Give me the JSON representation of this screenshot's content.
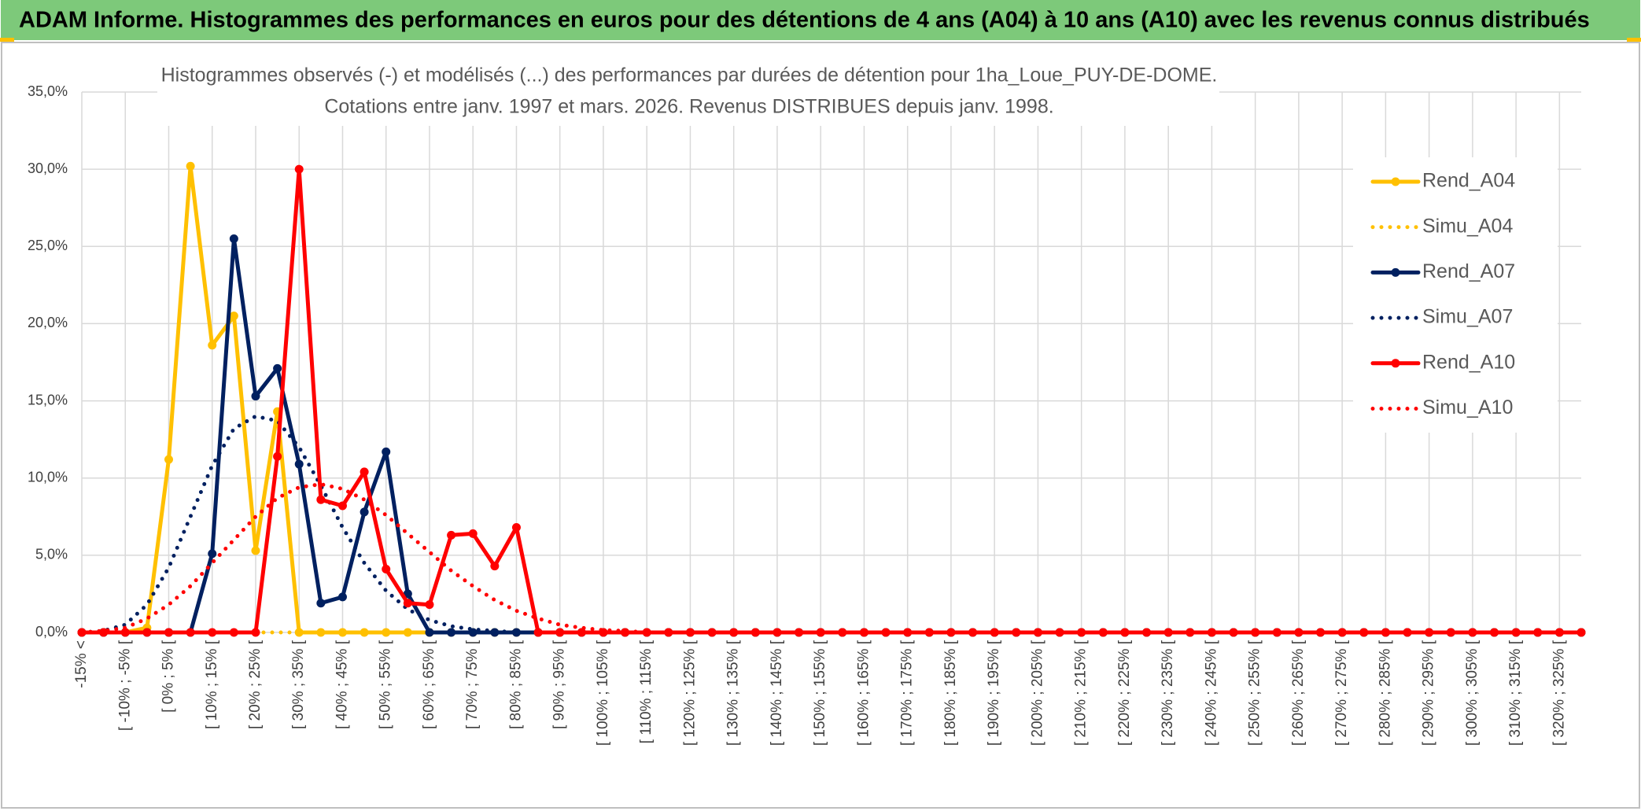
{
  "header": {
    "title": "ADAM Informe. Histogrammes des performances en euros pour des détentions de 4 ans (A04) à 10 ans (A10) avec les revenus connus distribués"
  },
  "chart_data": {
    "type": "line",
    "title": "Histogrammes observés (-) et modélisés (...) des performances par durées de détention pour 1ha_Loue_PUY-DE-DOME.",
    "subtitle": "Cotations entre janv. 1997 et mars. 2026. Revenus DISTRIBUES depuis janv. 1998.",
    "categories": [
      "-15% <",
      null,
      "[ -10% ; -5% [",
      null,
      "[ 0% ; 5% [",
      null,
      "[ 10% ; 15% [",
      null,
      "[ 20% ; 25% [",
      null,
      "[ 30% ; 35% [",
      null,
      "[ 40% ; 45% [",
      null,
      "[ 50% ; 55% [",
      null,
      "[ 60% ; 65% [",
      null,
      "[ 70% ; 75% [",
      null,
      "[ 80% ; 85% [",
      null,
      "[ 90% ; 95% [",
      null,
      "[ 100% ; 105% [",
      null,
      "[ 110% ; 115% [",
      null,
      "[ 120% ; 125% [",
      null,
      "[ 130% ; 135% [",
      null,
      "[ 140% ; 145% [",
      null,
      "[ 150% ; 155% [",
      null,
      "[ 160% ; 165% [",
      null,
      "[ 170% ; 175% [",
      null,
      "[ 180% ; 185% [",
      null,
      "[ 190% ; 195% [",
      null,
      "[ 200% ; 205% [",
      null,
      "[ 210% ; 215% [",
      null,
      "[ 220% ; 225% [",
      null,
      "[ 230% ; 235% [",
      null,
      "[ 240% ; 245% [",
      null,
      "[ 250% ; 255% [",
      null,
      "[ 260% ; 265% [",
      null,
      "[ 270% ; 275% [",
      null,
      "[ 280% ; 285% [",
      null,
      "[ 290% ; 295% [",
      null,
      "[ 300% ; 305% [",
      null,
      "[ 310% ; 315% [",
      null,
      "[ 320% ; 325% [",
      null
    ],
    "series": [
      {
        "name": "Rend_A04",
        "color": "#ffc000",
        "style": "solid",
        "markers": true,
        "values": [
          0,
          0,
          0,
          0.3,
          11.2,
          30.2,
          18.6,
          20.5,
          5.3,
          14.3,
          0,
          0,
          0,
          0,
          0,
          0,
          0,
          0,
          0,
          0,
          0,
          0,
          0,
          0,
          0,
          0,
          0,
          0,
          0,
          0,
          0,
          0,
          0,
          0,
          0,
          0,
          0,
          0,
          0,
          0,
          0,
          0,
          0,
          0,
          0,
          0,
          0,
          0,
          0,
          0,
          0,
          0,
          0,
          0,
          0,
          0,
          0,
          0,
          0,
          0,
          0,
          0,
          0,
          0,
          0,
          0,
          0,
          0,
          0,
          0
        ]
      },
      {
        "name": "Simu_A04",
        "color": "#ffc000",
        "style": "dotted",
        "markers": false,
        "values": [
          0,
          0,
          0,
          0,
          0,
          0,
          0,
          0,
          0,
          0,
          0,
          0,
          0,
          0,
          0,
          0,
          0,
          0,
          0,
          0,
          0,
          0,
          0,
          0,
          0,
          0,
          0,
          0,
          0,
          0,
          0,
          0,
          0,
          0,
          0,
          0,
          0,
          0,
          0,
          0,
          0,
          0,
          0,
          0,
          0,
          0,
          0,
          0,
          0,
          0,
          0,
          0,
          0,
          0,
          0,
          0,
          0,
          0,
          0,
          0,
          0,
          0,
          0,
          0,
          0,
          0,
          0,
          0,
          0,
          0
        ]
      },
      {
        "name": "Rend_A07",
        "color": "#002060",
        "style": "solid",
        "markers": true,
        "values": [
          0,
          0,
          0,
          0,
          0,
          0,
          5.1,
          25.5,
          15.3,
          17.1,
          10.9,
          1.9,
          2.3,
          7.8,
          11.7,
          2.5,
          0,
          0,
          0,
          0,
          0,
          0,
          0,
          0,
          0,
          0,
          0,
          0,
          0,
          0,
          0,
          0,
          0,
          0,
          0,
          0,
          0,
          0,
          0,
          0,
          0,
          0,
          0,
          0,
          0,
          0,
          0,
          0,
          0,
          0,
          0,
          0,
          0,
          0,
          0,
          0,
          0,
          0,
          0,
          0,
          0,
          0,
          0,
          0,
          0,
          0,
          0,
          0,
          0,
          0
        ]
      },
      {
        "name": "Simu_A07",
        "color": "#002060",
        "style": "dotted",
        "markers": false,
        "values": [
          0,
          0.1,
          0.5,
          1.8,
          4.2,
          7.5,
          10.8,
          13.2,
          14,
          13.7,
          12,
          9.5,
          6.8,
          4.5,
          2.7,
          1.5,
          0.8,
          0.4,
          0.2,
          0.1,
          0,
          0,
          0,
          0,
          0,
          0,
          0,
          0,
          0,
          0,
          0,
          0,
          0,
          0,
          0,
          0,
          0,
          0,
          0,
          0,
          0,
          0,
          0,
          0,
          0,
          0,
          0,
          0,
          0,
          0,
          0,
          0,
          0,
          0,
          0,
          0,
          0,
          0,
          0,
          0,
          0,
          0,
          0,
          0,
          0,
          0,
          0,
          0,
          0,
          0
        ]
      },
      {
        "name": "Rend_A10",
        "color": "#ff0000",
        "style": "solid",
        "markers": true,
        "values": [
          0,
          0,
          0,
          0,
          0,
          0,
          0,
          0,
          0,
          11.4,
          30,
          8.6,
          8.2,
          10.4,
          4.1,
          1.9,
          1.8,
          6.3,
          6.4,
          4.3,
          6.8,
          0,
          0,
          0,
          0,
          0,
          0,
          0,
          0,
          0,
          0,
          0,
          0,
          0,
          0,
          0,
          0,
          0,
          0,
          0,
          0,
          0,
          0,
          0,
          0,
          0,
          0,
          0,
          0,
          0,
          0,
          0,
          0,
          0,
          0,
          0,
          0,
          0,
          0,
          0,
          0,
          0,
          0,
          0,
          0,
          0,
          0,
          0,
          0,
          0
        ]
      },
      {
        "name": "Simu_A10",
        "color": "#ff0000",
        "style": "dotted",
        "markers": false,
        "values": [
          0,
          0.1,
          0.3,
          0.9,
          1.8,
          3,
          4.5,
          6,
          7.5,
          8.7,
          9.4,
          9.6,
          9.3,
          8.6,
          7.6,
          6.4,
          5.2,
          4,
          3,
          2.1,
          1.4,
          0.9,
          0.5,
          0.3,
          0.15,
          0.1,
          0,
          0,
          0,
          0,
          0,
          0,
          0,
          0,
          0,
          0,
          0,
          0,
          0,
          0,
          0,
          0,
          0,
          0,
          0,
          0,
          0,
          0,
          0,
          0,
          0,
          0,
          0,
          0,
          0,
          0,
          0,
          0,
          0,
          0,
          0,
          0,
          0,
          0,
          0,
          0,
          0,
          0,
          0,
          0
        ]
      }
    ],
    "ylim": [
      0,
      35
    ],
    "yticks": [
      {
        "value": 0,
        "label": "0,0%"
      },
      {
        "value": 5,
        "label": "5,0%"
      },
      {
        "value": 10,
        "label": "10,0%"
      },
      {
        "value": 15,
        "label": "15,0%"
      },
      {
        "value": 20,
        "label": "20,0%"
      },
      {
        "value": 25,
        "label": "25,0%"
      },
      {
        "value": 30,
        "label": "30,0%"
      },
      {
        "value": 35,
        "label": "35,0%"
      }
    ],
    "grid": true,
    "legend": "right"
  }
}
